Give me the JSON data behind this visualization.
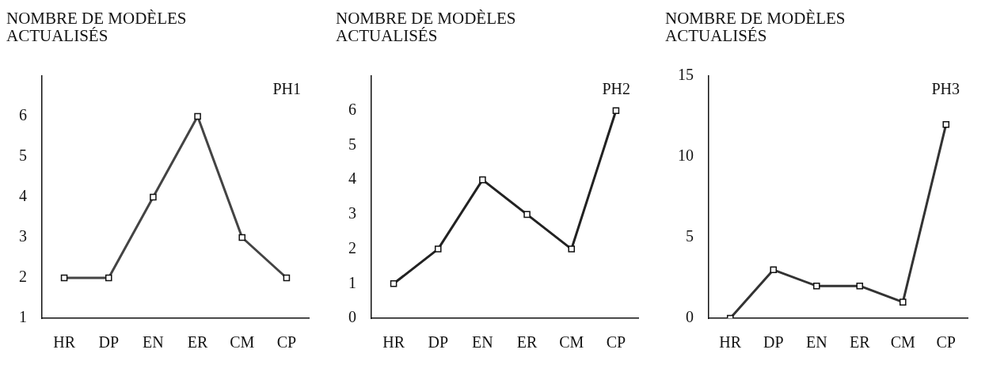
{
  "chart_data": [
    {
      "type": "line",
      "title": "PH1",
      "ylabel": "NOMBRE DE MODÈLES ACTUALISÉS",
      "categories": [
        "HR",
        "DP",
        "EN",
        "ER",
        "CM",
        "CP"
      ],
      "series": [
        {
          "color": "#444444",
          "values": [
            2,
            2,
            4,
            6,
            3,
            2
          ]
        }
      ],
      "ylim": [
        1,
        7
      ],
      "yticks": [
        1,
        2,
        3,
        4,
        5,
        6
      ],
      "grid": false,
      "legend": false,
      "marker": "square"
    },
    {
      "type": "line",
      "title": "PH2",
      "ylabel": "NOMBRE DE MODÈLES ACTUALISÉS",
      "categories": [
        "HR",
        "DP",
        "EN",
        "ER",
        "CM",
        "CP"
      ],
      "series": [
        {
          "color": "#222222",
          "values": [
            1,
            2,
            4,
            3,
            2,
            6
          ]
        }
      ],
      "ylim": [
        0,
        7
      ],
      "yticks": [
        0,
        1,
        2,
        3,
        4,
        5,
        6
      ],
      "grid": false,
      "legend": false,
      "marker": "square"
    },
    {
      "type": "line",
      "title": "PH3",
      "ylabel": "NOMBRE DE MODÈLES ACTUALISÉS",
      "categories": [
        "HR",
        "DP",
        "EN",
        "ER",
        "CM",
        "CP"
      ],
      "series": [
        {
          "color": "#333333",
          "values": [
            0,
            3,
            2,
            2,
            1,
            12
          ]
        }
      ],
      "ylim": [
        0,
        15
      ],
      "yticks": [
        0,
        5,
        10,
        15
      ],
      "grid": false,
      "legend": false,
      "marker": "square"
    }
  ]
}
